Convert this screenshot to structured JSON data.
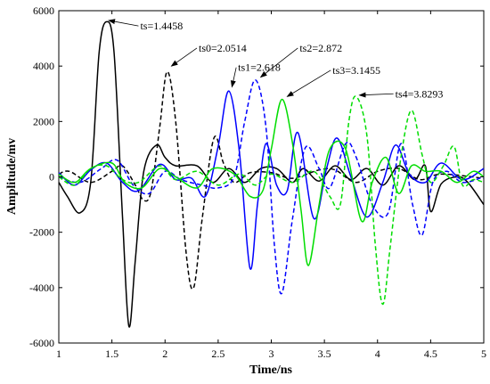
{
  "chart_data": {
    "type": "line",
    "xlabel": "Time/ns",
    "ylabel": "Amplitude/mv",
    "xlim": [
      1,
      5
    ],
    "ylim": [
      -6000,
      6000
    ],
    "xticks": [
      1,
      1.5,
      2,
      2.5,
      3,
      3.5,
      4,
      4.5,
      5
    ],
    "yticks": [
      -6000,
      -4000,
      -2000,
      0,
      2000,
      4000,
      6000
    ],
    "grid": false,
    "series": [
      {
        "color": "#000000",
        "dash": "solid",
        "points": [
          [
            1,
            -200
          ],
          [
            1.08,
            -700
          ],
          [
            1.2,
            -1300
          ],
          [
            1.3,
            -200
          ],
          [
            1.38,
            4500
          ],
          [
            1.45,
            5600
          ],
          [
            1.52,
            4500
          ],
          [
            1.6,
            -1500
          ],
          [
            1.66,
            -5400
          ],
          [
            1.72,
            -3000
          ],
          [
            1.8,
            200
          ],
          [
            1.92,
            1150
          ],
          [
            2.0,
            700
          ],
          [
            2.1,
            400
          ],
          [
            2.3,
            400
          ],
          [
            2.45,
            -200
          ],
          [
            2.6,
            300
          ],
          [
            2.75,
            -200
          ],
          [
            2.9,
            300
          ],
          [
            3.05,
            300
          ],
          [
            3.2,
            -200
          ],
          [
            3.3,
            300
          ],
          [
            3.45,
            -150
          ],
          [
            3.6,
            400
          ],
          [
            3.75,
            -100
          ],
          [
            3.9,
            300
          ],
          [
            4.05,
            -300
          ],
          [
            4.2,
            400
          ],
          [
            4.35,
            -100
          ],
          [
            4.45,
            400
          ],
          [
            4.5,
            -1250
          ],
          [
            4.6,
            -250
          ],
          [
            4.75,
            0
          ],
          [
            4.85,
            -200
          ],
          [
            5.0,
            -1000
          ]
        ]
      },
      {
        "color": "#000000",
        "dash": "dashed",
        "points": [
          [
            1,
            100
          ],
          [
            1.1,
            200
          ],
          [
            1.3,
            -200
          ],
          [
            1.5,
            200
          ],
          [
            1.6,
            400
          ],
          [
            1.72,
            -300
          ],
          [
            1.8,
            -850
          ],
          [
            1.87,
            -500
          ],
          [
            1.95,
            1800
          ],
          [
            2.02,
            3800
          ],
          [
            2.1,
            2000
          ],
          [
            2.2,
            -2800
          ],
          [
            2.27,
            -4000
          ],
          [
            2.35,
            -1500
          ],
          [
            2.46,
            1400
          ],
          [
            2.55,
            500
          ],
          [
            2.65,
            -200
          ],
          [
            2.8,
            150
          ],
          [
            3.0,
            150
          ],
          [
            3.2,
            -50
          ],
          [
            3.45,
            250
          ],
          [
            3.6,
            250
          ],
          [
            3.8,
            -200
          ],
          [
            4.0,
            200
          ],
          [
            4.2,
            300
          ],
          [
            4.4,
            -100
          ],
          [
            4.6,
            100
          ],
          [
            5.0,
            -50
          ]
        ]
      },
      {
        "color": "#0000ff",
        "dash": "solid",
        "points": [
          [
            1,
            150
          ],
          [
            1.15,
            -300
          ],
          [
            1.3,
            250
          ],
          [
            1.45,
            500
          ],
          [
            1.6,
            -200
          ],
          [
            1.75,
            -500
          ],
          [
            1.95,
            450
          ],
          [
            2.1,
            -100
          ],
          [
            2.25,
            -50
          ],
          [
            2.38,
            -700
          ],
          [
            2.5,
            1100
          ],
          [
            2.6,
            3100
          ],
          [
            2.7,
            900
          ],
          [
            2.8,
            -3300
          ],
          [
            2.87,
            -1000
          ],
          [
            2.95,
            1200
          ],
          [
            3.05,
            -300
          ],
          [
            3.15,
            -500
          ],
          [
            3.25,
            1600
          ],
          [
            3.4,
            -1500
          ],
          [
            3.52,
            300
          ],
          [
            3.62,
            1400
          ],
          [
            3.75,
            0
          ],
          [
            3.9,
            -1450
          ],
          [
            4.05,
            -200
          ],
          [
            4.17,
            1150
          ],
          [
            4.3,
            100
          ],
          [
            4.45,
            -200
          ],
          [
            4.6,
            500
          ],
          [
            4.8,
            -100
          ],
          [
            5.0,
            300
          ]
        ]
      },
      {
        "color": "#0000ff",
        "dash": "dashed",
        "points": [
          [
            1,
            0
          ],
          [
            1.2,
            -200
          ],
          [
            1.4,
            300
          ],
          [
            1.55,
            600
          ],
          [
            1.7,
            -300
          ],
          [
            1.85,
            -600
          ],
          [
            2.0,
            200
          ],
          [
            2.15,
            -100
          ],
          [
            2.35,
            -300
          ],
          [
            2.5,
            -400
          ],
          [
            2.65,
            0
          ],
          [
            2.75,
            2000
          ],
          [
            2.85,
            3500
          ],
          [
            2.95,
            1800
          ],
          [
            3.03,
            -2500
          ],
          [
            3.1,
            -4200
          ],
          [
            3.2,
            -1500
          ],
          [
            3.32,
            1050
          ],
          [
            3.45,
            300
          ],
          [
            3.55,
            -400
          ],
          [
            3.7,
            1200
          ],
          [
            3.8,
            700
          ],
          [
            3.95,
            -1000
          ],
          [
            4.1,
            -1300
          ],
          [
            4.22,
            1200
          ],
          [
            4.33,
            -1000
          ],
          [
            4.42,
            -2100
          ],
          [
            4.52,
            -200
          ],
          [
            4.65,
            200
          ],
          [
            4.8,
            -200
          ],
          [
            5.0,
            0
          ]
        ]
      },
      {
        "color": "#00dd00",
        "dash": "solid",
        "points": [
          [
            1,
            100
          ],
          [
            1.15,
            -200
          ],
          [
            1.3,
            300
          ],
          [
            1.5,
            500
          ],
          [
            1.62,
            -200
          ],
          [
            1.78,
            -400
          ],
          [
            1.95,
            300
          ],
          [
            2.1,
            0
          ],
          [
            2.3,
            -400
          ],
          [
            2.45,
            300
          ],
          [
            2.65,
            100
          ],
          [
            2.8,
            -700
          ],
          [
            2.92,
            -500
          ],
          [
            3.0,
            1000
          ],
          [
            3.1,
            2800
          ],
          [
            3.2,
            1200
          ],
          [
            3.28,
            -1200
          ],
          [
            3.35,
            -3200
          ],
          [
            3.45,
            -1000
          ],
          [
            3.55,
            1000
          ],
          [
            3.7,
            1000
          ],
          [
            3.85,
            -1600
          ],
          [
            3.95,
            -200
          ],
          [
            4.08,
            700
          ],
          [
            4.2,
            -600
          ],
          [
            4.32,
            400
          ],
          [
            4.45,
            200
          ],
          [
            4.6,
            200
          ],
          [
            4.75,
            -200
          ],
          [
            4.9,
            200
          ],
          [
            5.0,
            0
          ]
        ]
      },
      {
        "color": "#00dd00",
        "dash": "dashed",
        "points": [
          [
            1,
            0
          ],
          [
            1.15,
            -300
          ],
          [
            1.3,
            300
          ],
          [
            1.45,
            400
          ],
          [
            1.6,
            -100
          ],
          [
            1.75,
            -200
          ],
          [
            1.95,
            400
          ],
          [
            2.1,
            -100
          ],
          [
            2.3,
            200
          ],
          [
            2.5,
            -300
          ],
          [
            2.7,
            100
          ],
          [
            2.85,
            -300
          ],
          [
            3.0,
            100
          ],
          [
            3.2,
            -200
          ],
          [
            3.4,
            200
          ],
          [
            3.55,
            -700
          ],
          [
            3.65,
            -1000
          ],
          [
            3.73,
            2000
          ],
          [
            3.8,
            2900
          ],
          [
            3.9,
            1500
          ],
          [
            3.98,
            -2500
          ],
          [
            4.05,
            -4600
          ],
          [
            4.12,
            -2500
          ],
          [
            4.22,
            700
          ],
          [
            4.32,
            2400
          ],
          [
            4.42,
            800
          ],
          [
            4.5,
            -200
          ],
          [
            4.62,
            400
          ],
          [
            4.72,
            1100
          ],
          [
            4.8,
            -300
          ],
          [
            4.9,
            -100
          ],
          [
            5.0,
            -200
          ]
        ]
      }
    ],
    "annotations": [
      {
        "text": "ts=1.4458",
        "tx": 1.75,
        "ty": 5450,
        "ax": 1.47,
        "ay": 5650
      },
      {
        "text": "ts0=2.0514",
        "tx": 2.3,
        "ty": 4650,
        "ax": 2.06,
        "ay": 4000
      },
      {
        "text": "ts1=2.618",
        "tx": 2.67,
        "ty": 3950,
        "ax": 2.63,
        "ay": 3250
      },
      {
        "text": "ts2=2.872",
        "tx": 3.25,
        "ty": 4650,
        "ax": 2.9,
        "ay": 3600
      },
      {
        "text": "ts3=3.1455",
        "tx": 3.56,
        "ty": 3850,
        "ax": 3.15,
        "ay": 2900
      },
      {
        "text": "ts4=3.8293",
        "tx": 4.15,
        "ty": 3000,
        "ax": 3.83,
        "ay": 2950
      }
    ]
  }
}
